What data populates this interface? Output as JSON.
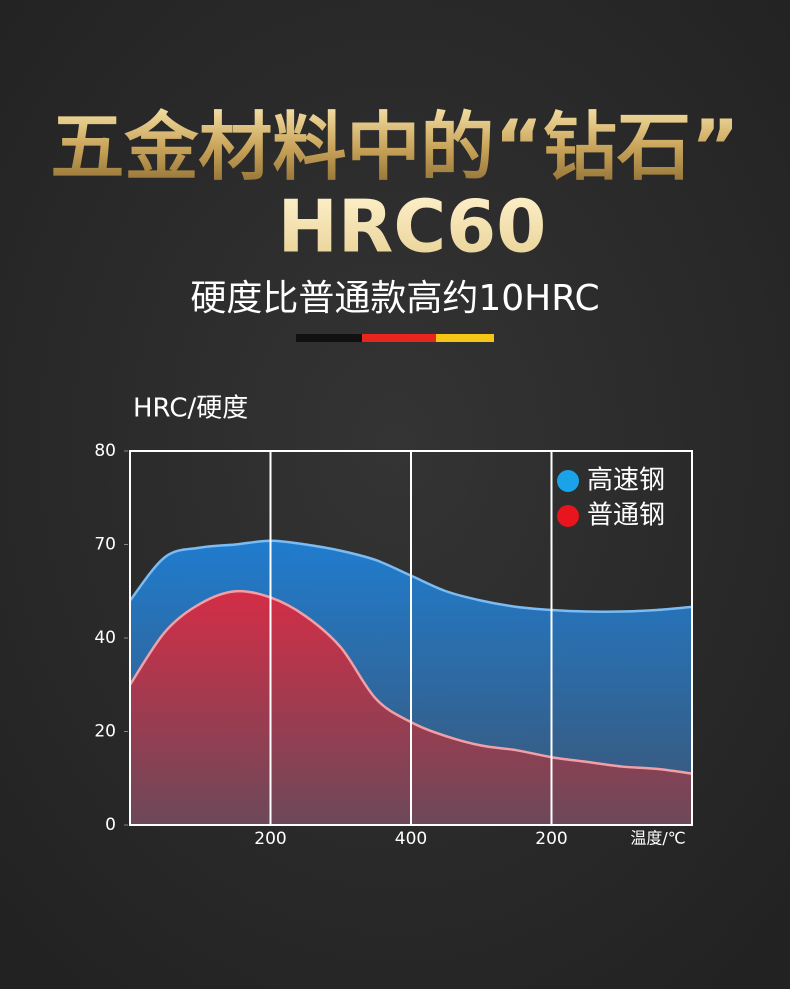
{
  "header": {
    "title": "五金材料中的“钻石”",
    "headline": "HRC60",
    "subtitle": "硬度比普通款高约10HRC"
  },
  "chart_data": {
    "type": "area",
    "y_label": "HRC/硬度",
    "x_label": "温度/℃",
    "categories": [
      null,
      null,
      null,
      null,
      "200",
      null,
      null,
      null,
      "400",
      null,
      null,
      null,
      "200",
      null,
      null,
      null,
      null
    ],
    "series": [
      {
        "name": "高速钢",
        "color": "#1aa3e8",
        "values": [
          52,
          66,
          69,
          70,
          70.4,
          70,
          68,
          65,
          60,
          55,
          52,
          50,
          49,
          48.5,
          48.5,
          49,
          50
        ]
      },
      {
        "name": "普通钢",
        "color": "#e8141e",
        "values": [
          30,
          42,
          51,
          55,
          53,
          47,
          38,
          27,
          22,
          19,
          17,
          16,
          14.5,
          13.5,
          12.5,
          12,
          11
        ]
      }
    ],
    "ylim": [
      0,
      80
    ],
    "yticks": [
      0,
      20,
      40,
      70,
      80
    ],
    "grid": true,
    "legend": "top-right"
  }
}
